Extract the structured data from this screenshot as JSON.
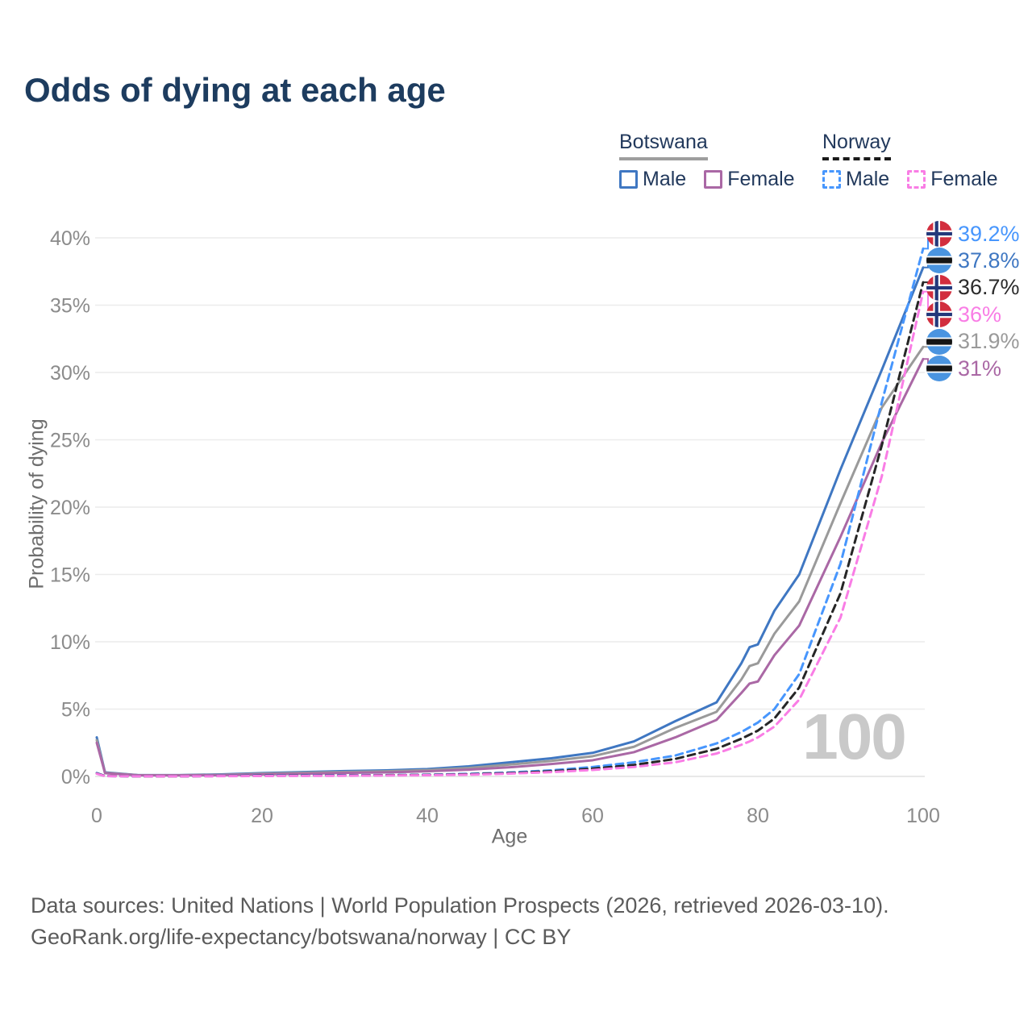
{
  "title": "Odds of dying at each age",
  "legend": {
    "groups": [
      {
        "country": "Botswana",
        "style": "solid",
        "underline_color": "#9e9e9e",
        "items": [
          {
            "label": "Male",
            "color": "#3f77c2",
            "dash": false
          },
          {
            "label": "Female",
            "color": "#aa68a5",
            "dash": false
          }
        ]
      },
      {
        "country": "Norway",
        "style": "dashed",
        "underline_color": "#1a1a1a",
        "items": [
          {
            "label": "Male",
            "color": "#4796fd",
            "dash": true
          },
          {
            "label": "Female",
            "color": "#f97de5",
            "dash": true
          }
        ]
      }
    ]
  },
  "watermark": "100",
  "chart_data": {
    "type": "line",
    "title": "Odds of dying at each age",
    "xlabel": "Age",
    "ylabel": "Probability of dying",
    "xlim": [
      0,
      100
    ],
    "ylim": [
      0,
      40
    ],
    "x_ticks": [
      0,
      20,
      40,
      60,
      80,
      100
    ],
    "y_ticks": [
      "0%",
      "5%",
      "10%",
      "15%",
      "20%",
      "25%",
      "30%",
      "35%",
      "40%"
    ],
    "grid": "horizontal",
    "legend_position": "top-right",
    "ages": [
      0,
      1,
      5,
      10,
      15,
      20,
      25,
      30,
      35,
      40,
      45,
      50,
      55,
      60,
      65,
      70,
      75,
      78,
      79,
      80,
      82,
      85,
      90,
      95,
      100
    ],
    "series": [
      {
        "name": "Botswana Male",
        "country": "Botswana",
        "sex": "Male",
        "color": "#3f77c2",
        "dash": false,
        "values": [
          2.9,
          0.3,
          0.1,
          0.1,
          0.15,
          0.25,
          0.32,
          0.4,
          0.45,
          0.55,
          0.75,
          1.05,
          1.35,
          1.75,
          2.6,
          4.1,
          5.5,
          8.4,
          9.6,
          9.8,
          12.3,
          15.0,
          22.8,
          30.2,
          37.8
        ]
      },
      {
        "name": "Botswana Both sexes",
        "country": "Botswana",
        "sex": "Both",
        "color": "#9a9a9a",
        "dash": false,
        "values": [
          2.7,
          0.27,
          0.09,
          0.09,
          0.12,
          0.2,
          0.27,
          0.33,
          0.38,
          0.47,
          0.63,
          0.88,
          1.15,
          1.5,
          2.2,
          3.6,
          4.8,
          7.2,
          8.2,
          8.4,
          10.6,
          13.0,
          20.3,
          27.4,
          31.9
        ]
      },
      {
        "name": "Botswana Female",
        "country": "Botswana",
        "sex": "Female",
        "color": "#aa68a5",
        "dash": false,
        "values": [
          2.5,
          0.24,
          0.08,
          0.08,
          0.1,
          0.15,
          0.2,
          0.26,
          0.3,
          0.38,
          0.5,
          0.68,
          0.92,
          1.2,
          1.8,
          2.9,
          4.2,
          6.2,
          6.9,
          7.05,
          9.0,
          11.2,
          17.8,
          24.8,
          31.0
        ]
      },
      {
        "name": "Norway Male",
        "country": "Norway",
        "sex": "Male",
        "color": "#4796fd",
        "dash": true,
        "values": [
          0.25,
          0.03,
          0.01,
          0.01,
          0.04,
          0.07,
          0.08,
          0.09,
          0.1,
          0.13,
          0.19,
          0.29,
          0.45,
          0.7,
          1.05,
          1.55,
          2.45,
          3.3,
          3.65,
          4.0,
          5.0,
          7.6,
          15.8,
          27.8,
          39.2
        ]
      },
      {
        "name": "Norway Both sexes",
        "country": "Norway",
        "sex": "Both",
        "color": "#262626",
        "dash": true,
        "values": [
          0.22,
          0.03,
          0.01,
          0.01,
          0.03,
          0.05,
          0.06,
          0.07,
          0.09,
          0.11,
          0.16,
          0.25,
          0.38,
          0.58,
          0.85,
          1.3,
          2.05,
          2.8,
          3.1,
          3.4,
          4.3,
          6.6,
          13.6,
          24.6,
          36.7
        ]
      },
      {
        "name": "Norway Female",
        "country": "Norway",
        "sex": "Female",
        "color": "#f97de5",
        "dash": true,
        "values": [
          0.2,
          0.02,
          0.01,
          0.01,
          0.02,
          0.03,
          0.04,
          0.05,
          0.07,
          0.09,
          0.13,
          0.21,
          0.32,
          0.48,
          0.7,
          1.05,
          1.7,
          2.35,
          2.6,
          2.9,
          3.7,
          5.7,
          11.8,
          22.3,
          36.0
        ]
      }
    ]
  },
  "end_labels": [
    {
      "value": "39.2%",
      "series": "Norway Male",
      "flag": "norway",
      "color": "#4796fd"
    },
    {
      "value": "37.8%",
      "series": "Botswana Male",
      "flag": "botswana",
      "color": "#3f77c2"
    },
    {
      "value": "36.7%",
      "series": "Norway Both sexes",
      "flag": "norway",
      "color": "#2b2b2b"
    },
    {
      "value": "36%",
      "series": "Norway Female",
      "flag": "norway",
      "color": "#f97de5"
    },
    {
      "value": "31.9%",
      "series": "Botswana Both sexes",
      "flag": "botswana",
      "color": "#9a9a9a"
    },
    {
      "value": "31%",
      "series": "Botswana Female",
      "flag": "botswana",
      "color": "#aa68a5"
    }
  ],
  "footer": {
    "line1": "Data sources: United Nations | World Population Prospects (2026, retrieved 2026-03-10).",
    "line2": "GeoRank.org/life-expectancy/botswana/norway | CC BY"
  }
}
